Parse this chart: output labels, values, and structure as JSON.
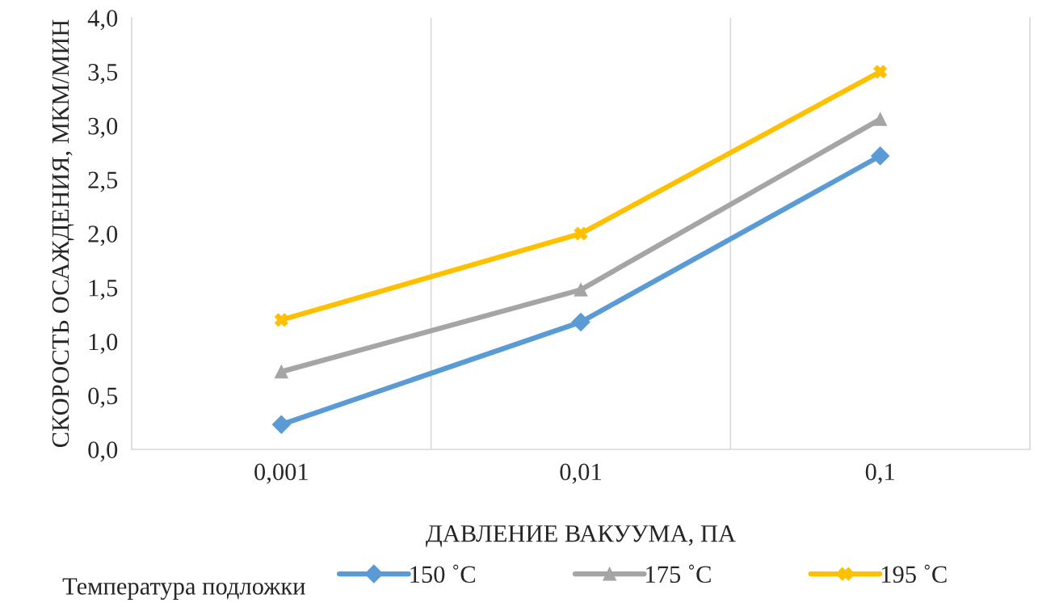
{
  "chart_data": {
    "type": "line",
    "xlabel": "ДАВЛЕНИЕ ВАКУУМА, ПА",
    "ylabel": "СКОРОСТЬ ОСАЖДЕНИЯ, МКМ/МИН",
    "legend_title": "Температура подложки",
    "categories": [
      "0,001",
      "0,01",
      "0,1"
    ],
    "series": [
      {
        "name": "150 ˚C",
        "color": "#5b9bd5",
        "marker": "diamond",
        "values": [
          0.23,
          1.18,
          2.72
        ]
      },
      {
        "name": "175 ˚C",
        "color": "#a5a5a5",
        "marker": "triangle",
        "values": [
          0.72,
          1.48,
          3.06
        ]
      },
      {
        "name": "195 ˚C",
        "color": "#ffc000",
        "marker": "cross",
        "values": [
          1.2,
          2.0,
          3.5
        ]
      }
    ],
    "ylim": [
      0,
      4
    ],
    "yticks": [
      {
        "value": 0,
        "label": "0,0"
      },
      {
        "value": 0.5,
        "label": "0,5"
      },
      {
        "value": 1,
        "label": "1,0"
      },
      {
        "value": 1.5,
        "label": "1,5"
      },
      {
        "value": 2,
        "label": "2,0"
      },
      {
        "value": 2.5,
        "label": "2,5"
      },
      {
        "value": 3,
        "label": "3,0"
      },
      {
        "value": 3.5,
        "label": "3,5"
      },
      {
        "value": 4,
        "label": "4,0"
      }
    ],
    "grid": "x",
    "legend": "bottom",
    "line_style": "solid"
  }
}
